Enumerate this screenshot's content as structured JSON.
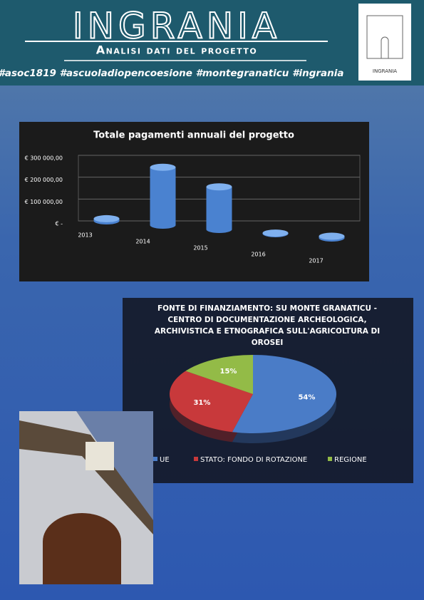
{
  "header": {
    "title": "INGRANIA",
    "subtitle": "Analisi dati del progetto",
    "hashtags": "#asoc1819 #ascuoladiopencoesione #montegranaticu #ingrania",
    "logo_text": "INGRANIA"
  },
  "chart_data": [
    {
      "type": "bar",
      "title": "Totale pagamenti annuali del progetto",
      "categories": [
        "2013",
        "2014",
        "2015",
        "2016",
        "2017"
      ],
      "values": [
        10000,
        265000,
        195000,
        3000,
        8000
      ],
      "color": "#4a82d0",
      "ylim": [
        0,
        300000
      ],
      "yticks": [
        {
          "value": 0,
          "label": "€ -"
        },
        {
          "value": 100000,
          "label": "€ 100 000,00"
        },
        {
          "value": 200000,
          "label": "€ 200 000,00"
        },
        {
          "value": 300000,
          "label": "€ 300 000,00"
        }
      ],
      "grid": true
    },
    {
      "type": "pie",
      "title": "FONTE DI FINANZIAMENTO: SU MONTE GRANATICU - CENTRO DI DOCUMENTAZIONE ARCHEOLOGICA, ARCHIVISTICA E ETNOGRAFICA SULL'AGRICOLTURA DI OROSEI",
      "categories": [
        "UE",
        "STATO: FONDO DI ROTAZIONE",
        "REGIONE"
      ],
      "values": [
        54,
        31,
        15
      ],
      "value_labels": [
        "54%",
        "31%",
        "15%"
      ],
      "colors": [
        "#4a7cc7",
        "#c8393b",
        "#93bb47"
      ],
      "legend": "bottom"
    }
  ]
}
